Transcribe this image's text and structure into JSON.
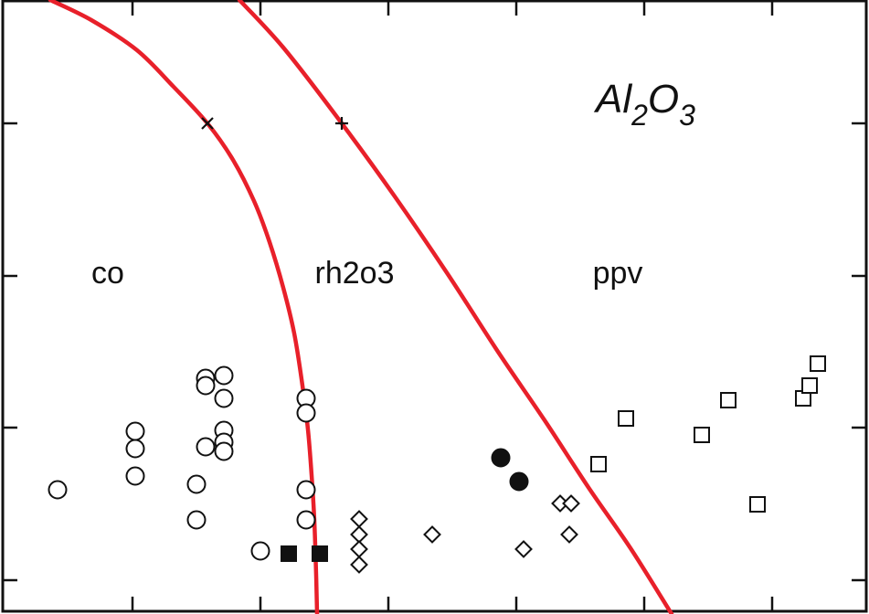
{
  "chart_data": {
    "type": "scatter",
    "title": "",
    "xlabel": "",
    "ylabel": "",
    "xlim": [
      0,
      951
    ],
    "ylim": [
      0,
      672
    ],
    "grid": false,
    "formula": {
      "base1": "Al",
      "sub1": "2",
      "base2": "O",
      "sub2": "3"
    },
    "region_labels": [
      {
        "text": "co",
        "x": 118,
        "y": 298
      },
      {
        "text": "rh2o3",
        "x": 388,
        "y": 298
      },
      {
        "text": "ppv",
        "x": 676,
        "y": 298
      }
    ],
    "x_ticks": [
      145,
      285,
      425,
      565,
      705,
      845
    ],
    "y_ticks": [
      135,
      302,
      468,
      635
    ],
    "boundaries": [
      {
        "name": "co-rh2o3",
        "color": "#e8202a",
        "points": [
          [
            55,
            0
          ],
          [
            100,
            22
          ],
          [
            150,
            55
          ],
          [
            190,
            95
          ],
          [
            227,
            135
          ],
          [
            255,
            175
          ],
          [
            278,
            220
          ],
          [
            295,
            265
          ],
          [
            310,
            315
          ],
          [
            322,
            365
          ],
          [
            330,
            415
          ],
          [
            337,
            470
          ],
          [
            341,
            520
          ],
          [
            344,
            570
          ],
          [
            346,
            630
          ],
          [
            347,
            672
          ]
        ]
      },
      {
        "name": "rh2o3-ppv",
        "color": "#e8202a",
        "points": [
          [
            262,
            0
          ],
          [
            310,
            52
          ],
          [
            374,
            135
          ],
          [
            432,
            215
          ],
          [
            490,
            300
          ],
          [
            545,
            385
          ],
          [
            596,
            460
          ],
          [
            645,
            535
          ],
          [
            690,
            600
          ],
          [
            735,
            672
          ]
        ]
      }
    ],
    "markers": [
      {
        "type": "x",
        "x": 227,
        "y": 135
      },
      {
        "type": "plus",
        "x": 374,
        "y": 135
      }
    ],
    "series": [
      {
        "marker": "circle-open",
        "points": [
          [
            63,
            536
          ],
          [
            148,
            472
          ],
          [
            148,
            491
          ],
          [
            148,
            521
          ],
          [
            215,
            530
          ],
          [
            215,
            569
          ],
          [
            225,
            414
          ],
          [
            225,
            422
          ],
          [
            225,
            489
          ],
          [
            245,
            411
          ],
          [
            245,
            436
          ],
          [
            245,
            471
          ],
          [
            245,
            484
          ],
          [
            245,
            494
          ],
          [
            285,
            603
          ],
          [
            335,
            436
          ],
          [
            335,
            452
          ],
          [
            335,
            536
          ],
          [
            335,
            569
          ]
        ]
      },
      {
        "marker": "circle-filled",
        "points": [
          [
            548,
            501
          ],
          [
            568,
            527
          ]
        ]
      },
      {
        "marker": "square-filled",
        "points": [
          [
            316,
            606
          ],
          [
            350,
            606
          ]
        ]
      },
      {
        "marker": "diamond-open",
        "points": [
          [
            393,
            568
          ],
          [
            393,
            585
          ],
          [
            393,
            601
          ],
          [
            393,
            618
          ],
          [
            473,
            585
          ],
          [
            573,
            601
          ],
          [
            613,
            551
          ],
          [
            625,
            551
          ],
          [
            623,
            585
          ]
        ]
      },
      {
        "marker": "square-open",
        "points": [
          [
            655,
            508
          ],
          [
            685,
            458
          ],
          [
            768,
            476
          ],
          [
            797,
            438
          ],
          [
            829,
            552
          ],
          [
            879,
            436
          ],
          [
            886,
            422
          ],
          [
            895,
            398
          ]
        ]
      }
    ]
  }
}
